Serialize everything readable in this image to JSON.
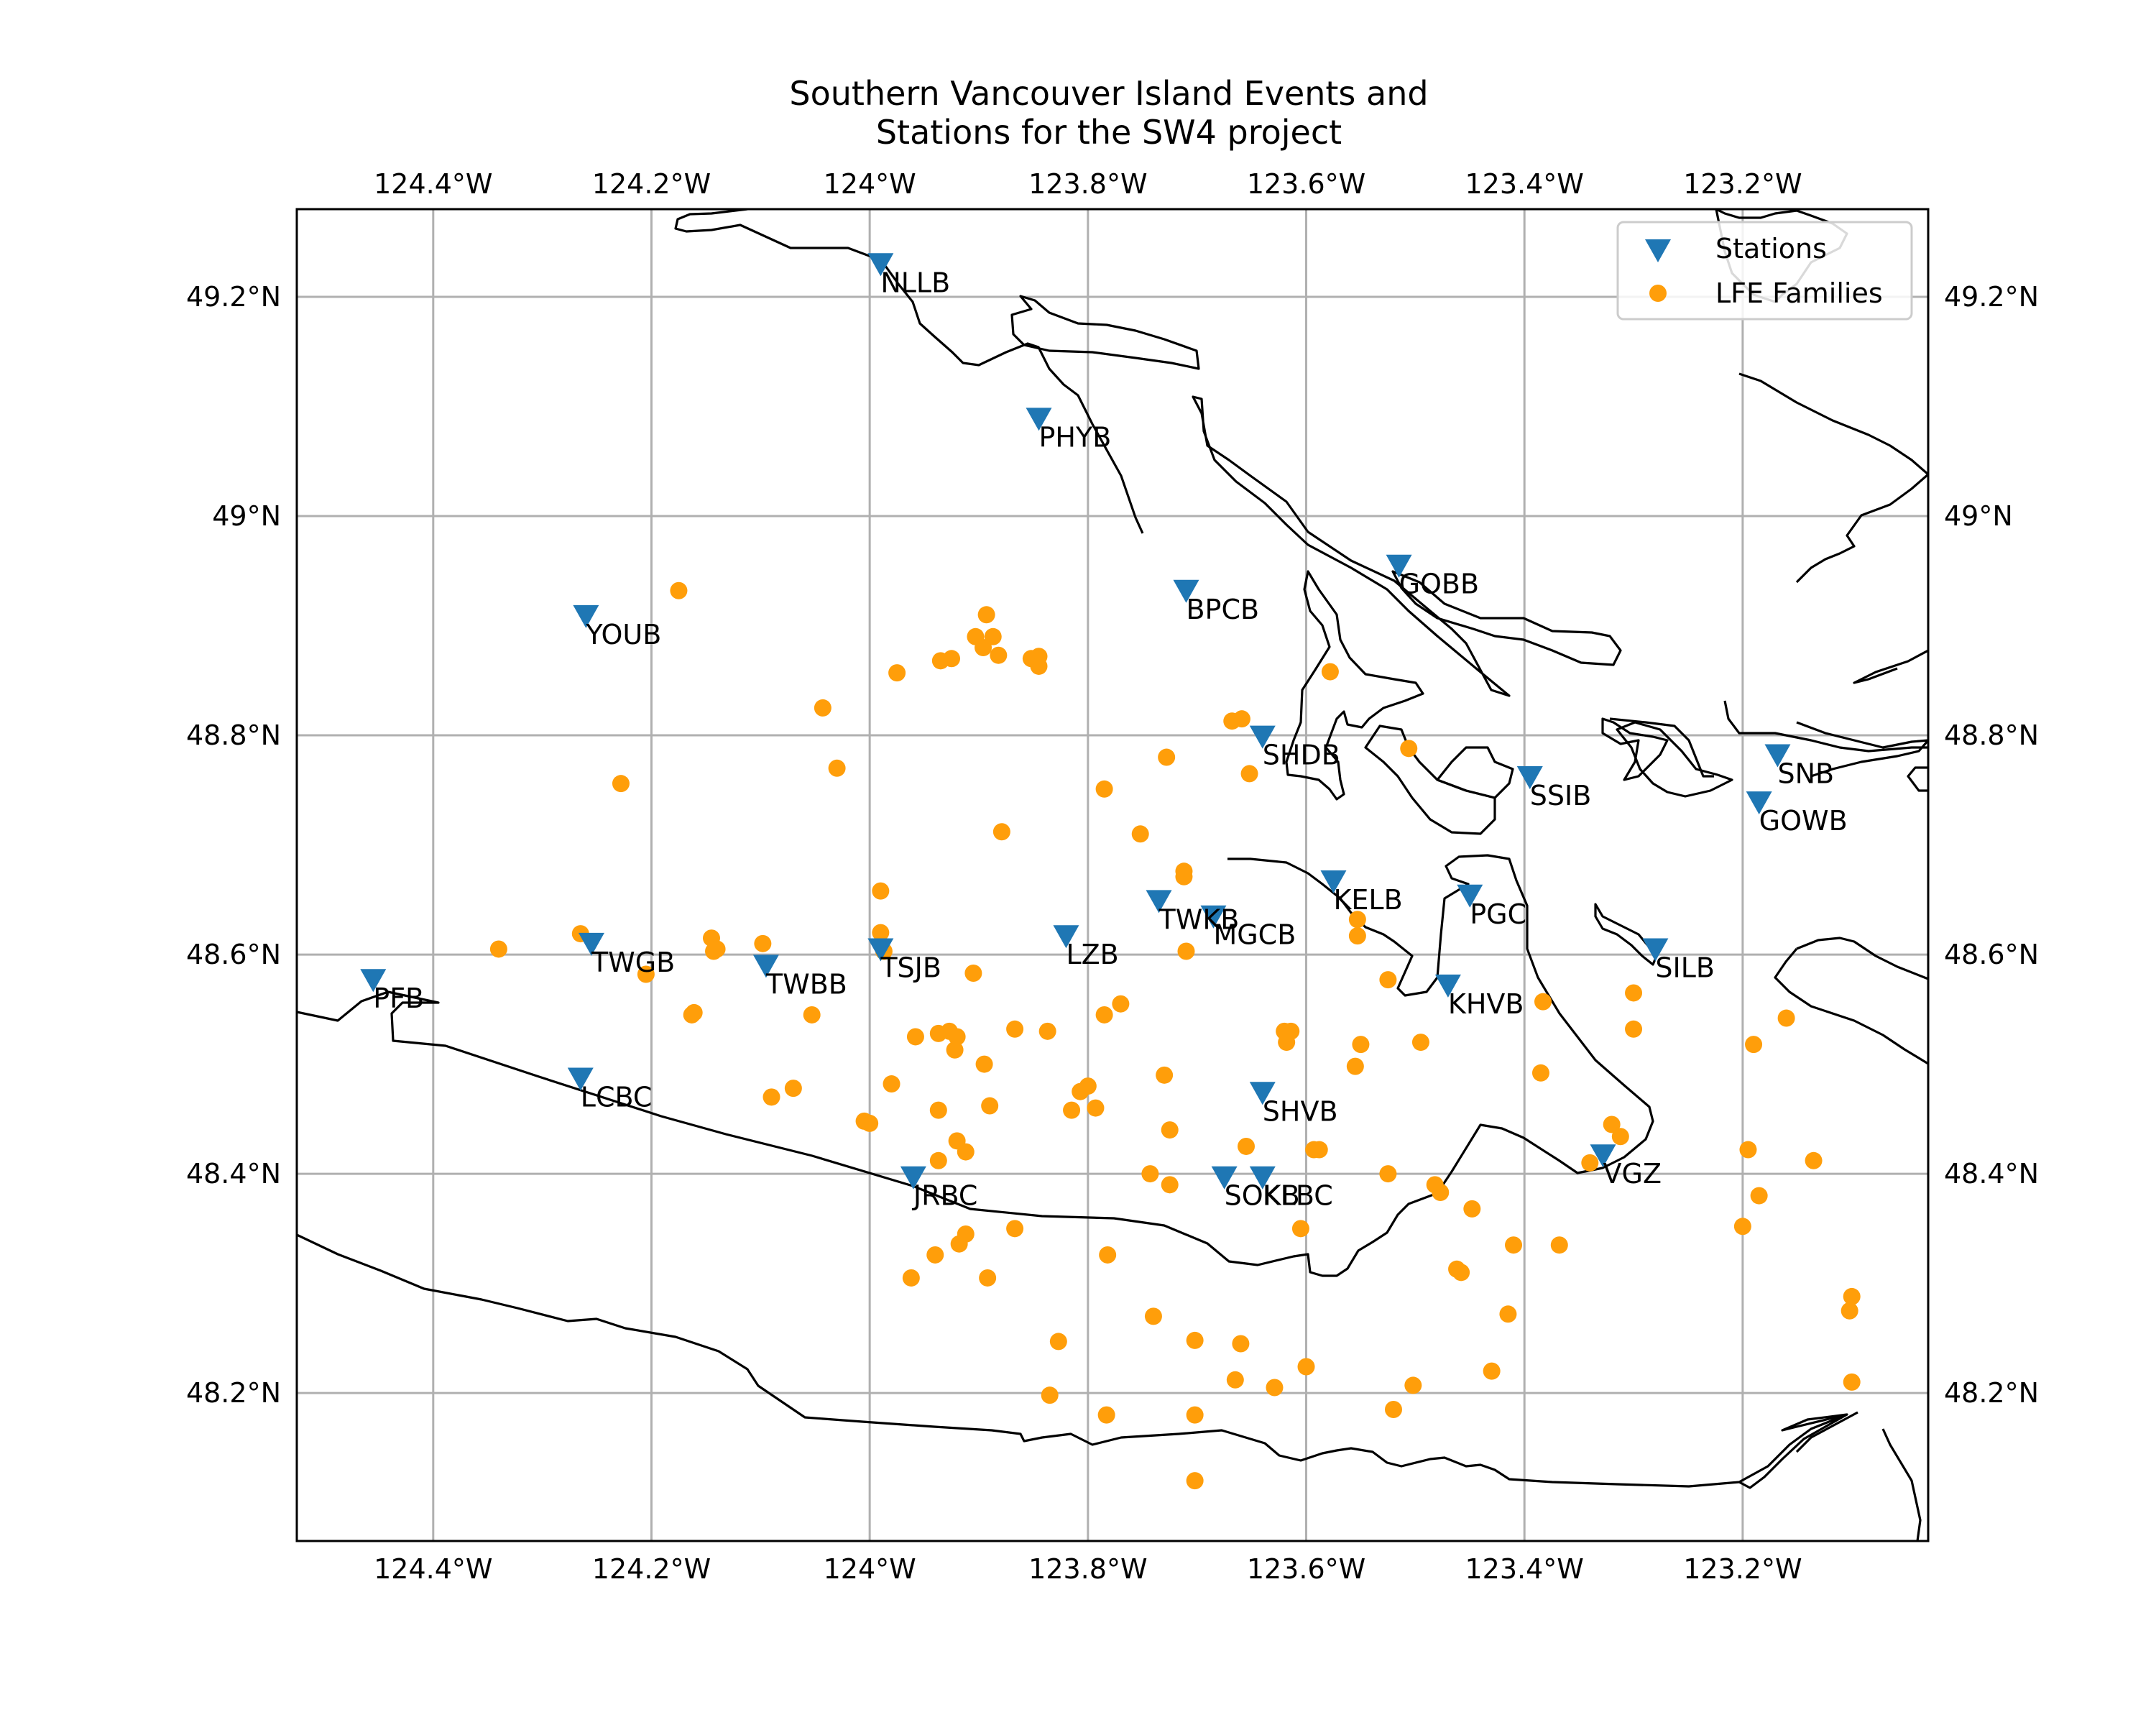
{
  "chart_data": {
    "type": "scatter",
    "title_line1": "Southern Vancouver Island Events and",
    "title_line2": "Stations for the SW4 project",
    "xlim": [
      -124.525,
      -123.03
    ],
    "ylim": [
      48.065,
      49.28
    ],
    "x_ticks": [
      {
        "value": -124.4,
        "label": "124.4°W"
      },
      {
        "value": -124.2,
        "label": "124.2°W"
      },
      {
        "value": -124.0,
        "label": "124°W"
      },
      {
        "value": -123.8,
        "label": "123.8°W"
      },
      {
        "value": -123.6,
        "label": "123.6°W"
      },
      {
        "value": -123.4,
        "label": "123.4°W"
      },
      {
        "value": -123.2,
        "label": "123.2°W"
      }
    ],
    "y_ticks": [
      {
        "value": 48.2,
        "label": "48.2°N"
      },
      {
        "value": 48.4,
        "label": "48.4°N"
      },
      {
        "value": 48.6,
        "label": "48.6°N"
      },
      {
        "value": 48.8,
        "label": "48.8°N"
      },
      {
        "value": 49.0,
        "label": "49°N"
      },
      {
        "value": 49.2,
        "label": "49.2°N"
      }
    ],
    "grid": true,
    "legend_position": "top-right",
    "colors": {
      "stations": "#1f77b4",
      "lfe": "#ff9e0a",
      "coast": "#000000",
      "grid": "#b0b0b0"
    },
    "legend": [
      {
        "key": "stations",
        "label": "Stations",
        "marker": "triangle-down"
      },
      {
        "key": "lfe",
        "label": "LFE Families",
        "marker": "circle"
      }
    ],
    "stations": [
      {
        "name": "NLLB",
        "lon": -123.99,
        "lat": 49.228
      },
      {
        "name": "PHYB",
        "lon": -123.845,
        "lat": 49.087
      },
      {
        "name": "YOUB",
        "lon": -124.26,
        "lat": 48.907
      },
      {
        "name": "BPCB",
        "lon": -123.71,
        "lat": 48.93
      },
      {
        "name": "GOBB",
        "lon": -123.515,
        "lat": 48.953
      },
      {
        "name": "SHDB",
        "lon": -123.64,
        "lat": 48.797
      },
      {
        "name": "SSIB",
        "lon": -123.395,
        "lat": 48.76
      },
      {
        "name": "SNB",
        "lon": -123.168,
        "lat": 48.78
      },
      {
        "name": "GOWB",
        "lon": -123.185,
        "lat": 48.737
      },
      {
        "name": "KELB",
        "lon": -123.575,
        "lat": 48.665
      },
      {
        "name": "PGC",
        "lon": -123.45,
        "lat": 48.652
      },
      {
        "name": "TWKB",
        "lon": -123.735,
        "lat": 48.647
      },
      {
        "name": "MGCB",
        "lon": -123.685,
        "lat": 48.633
      },
      {
        "name": "LZB",
        "lon": -123.82,
        "lat": 48.615
      },
      {
        "name": "SILB",
        "lon": -123.28,
        "lat": 48.603
      },
      {
        "name": "TWGB",
        "lon": -124.255,
        "lat": 48.608
      },
      {
        "name": "TSJB",
        "lon": -123.99,
        "lat": 48.603
      },
      {
        "name": "TWBB",
        "lon": -124.095,
        "lat": 48.588
      },
      {
        "name": "PFB",
        "lon": -124.455,
        "lat": 48.575
      },
      {
        "name": "KHVB",
        "lon": -123.47,
        "lat": 48.57
      },
      {
        "name": "LCBC",
        "lon": -124.265,
        "lat": 48.485
      },
      {
        "name": "SHVB",
        "lon": -123.64,
        "lat": 48.472
      },
      {
        "name": "VGZ",
        "lon": -123.328,
        "lat": 48.415
      },
      {
        "name": "JRBC",
        "lon": -123.96,
        "lat": 48.395
      },
      {
        "name": "SOKB",
        "lon": -123.675,
        "lat": 48.395
      },
      {
        "name": "KLBC",
        "lon": -123.64,
        "lat": 48.395
      }
    ],
    "lfe_families": [
      [
        -124.175,
        48.932
      ],
      [
        -123.893,
        48.91
      ],
      [
        -123.903,
        48.89
      ],
      [
        -123.887,
        48.89
      ],
      [
        -123.896,
        48.88
      ],
      [
        -123.925,
        48.87
      ],
      [
        -123.935,
        48.868
      ],
      [
        -123.882,
        48.873
      ],
      [
        -123.852,
        48.87
      ],
      [
        -123.845,
        48.872
      ],
      [
        -123.845,
        48.863
      ],
      [
        -123.975,
        48.857
      ],
      [
        -124.043,
        48.825
      ],
      [
        -123.668,
        48.813
      ],
      [
        -123.659,
        48.815
      ],
      [
        -123.728,
        48.78
      ],
      [
        -123.652,
        48.765
      ],
      [
        -124.03,
        48.77
      ],
      [
        -124.228,
        48.756
      ],
      [
        -123.785,
        48.751
      ],
      [
        -123.879,
        48.712
      ],
      [
        -123.752,
        48.71
      ],
      [
        -123.712,
        48.676
      ],
      [
        -123.712,
        48.671
      ],
      [
        -123.99,
        48.658
      ],
      [
        -123.578,
        48.858
      ],
      [
        -123.506,
        48.788
      ],
      [
        -124.265,
        48.619
      ],
      [
        -124.145,
        48.615
      ],
      [
        -124.143,
        48.603
      ],
      [
        -124.14,
        48.605
      ],
      [
        -124.098,
        48.61
      ],
      [
        -123.99,
        48.62
      ],
      [
        -123.987,
        48.603
      ],
      [
        -124.34,
        48.605
      ],
      [
        -123.71,
        48.603
      ],
      [
        -123.553,
        48.632
      ],
      [
        -123.553,
        48.617
      ],
      [
        -123.525,
        48.577
      ],
      [
        -124.205,
        48.582
      ],
      [
        -123.905,
        48.583
      ],
      [
        -123.77,
        48.555
      ],
      [
        -123.785,
        48.545
      ],
      [
        -124.163,
        48.545
      ],
      [
        -124.161,
        48.547
      ],
      [
        -124.053,
        48.545
      ],
      [
        -123.383,
        48.557
      ],
      [
        -123.3,
        48.565
      ],
      [
        -123.3,
        48.532
      ],
      [
        -123.16,
        48.542
      ],
      [
        -123.867,
        48.532
      ],
      [
        -123.837,
        48.53
      ],
      [
        -123.927,
        48.53
      ],
      [
        -123.937,
        48.528
      ],
      [
        -123.958,
        48.525
      ],
      [
        -123.92,
        48.525
      ],
      [
        -123.922,
        48.513
      ],
      [
        -123.62,
        48.53
      ],
      [
        -123.614,
        48.53
      ],
      [
        -123.618,
        48.52
      ],
      [
        -123.55,
        48.518
      ],
      [
        -123.495,
        48.52
      ],
      [
        -123.19,
        48.518
      ],
      [
        -123.555,
        48.498
      ],
      [
        -123.895,
        48.5
      ],
      [
        -123.73,
        48.49
      ],
      [
        -123.385,
        48.492
      ],
      [
        -123.98,
        48.482
      ],
      [
        -124.07,
        48.478
      ],
      [
        -124.09,
        48.47
      ],
      [
        -123.8,
        48.48
      ],
      [
        -123.807,
        48.475
      ],
      [
        -123.793,
        48.46
      ],
      [
        -123.815,
        48.458
      ],
      [
        -123.89,
        48.462
      ],
      [
        -123.937,
        48.458
      ],
      [
        -124.005,
        48.448
      ],
      [
        -124.0,
        48.446
      ],
      [
        -123.725,
        48.44
      ],
      [
        -123.32,
        48.445
      ],
      [
        -123.312,
        48.434
      ],
      [
        -123.92,
        48.43
      ],
      [
        -123.912,
        48.42
      ],
      [
        -123.937,
        48.412
      ],
      [
        -123.655,
        48.425
      ],
      [
        -123.593,
        48.422
      ],
      [
        -123.588,
        48.422
      ],
      [
        -123.195,
        48.422
      ],
      [
        -123.135,
        48.412
      ],
      [
        -123.34,
        48.41
      ],
      [
        -123.743,
        48.4
      ],
      [
        -123.725,
        48.39
      ],
      [
        -123.525,
        48.4
      ],
      [
        -123.482,
        48.39
      ],
      [
        -123.477,
        48.383
      ],
      [
        -123.185,
        48.38
      ],
      [
        -123.448,
        48.368
      ],
      [
        -123.867,
        48.35
      ],
      [
        -123.605,
        48.35
      ],
      [
        -123.2,
        48.352
      ],
      [
        -123.912,
        48.345
      ],
      [
        -123.918,
        48.336
      ],
      [
        -123.41,
        48.335
      ],
      [
        -123.368,
        48.335
      ],
      [
        -123.94,
        48.326
      ],
      [
        -123.782,
        48.326
      ],
      [
        -123.462,
        48.313
      ],
      [
        -123.458,
        48.31
      ],
      [
        -123.962,
        48.305
      ],
      [
        -123.892,
        48.305
      ],
      [
        -123.1,
        48.288
      ],
      [
        -123.102,
        48.275
      ],
      [
        -123.415,
        48.272
      ],
      [
        -123.74,
        48.27
      ],
      [
        -123.827,
        48.247
      ],
      [
        -123.702,
        48.248
      ],
      [
        -123.66,
        48.245
      ],
      [
        -123.6,
        48.224
      ],
      [
        -123.43,
        48.22
      ],
      [
        -123.665,
        48.212
      ],
      [
        -123.629,
        48.205
      ],
      [
        -123.502,
        48.207
      ],
      [
        -123.1,
        48.21
      ],
      [
        -123.835,
        48.198
      ],
      [
        -123.52,
        48.185
      ],
      [
        -123.783,
        48.18
      ],
      [
        -123.702,
        48.18
      ],
      [
        -123.702,
        48.12
      ]
    ]
  }
}
